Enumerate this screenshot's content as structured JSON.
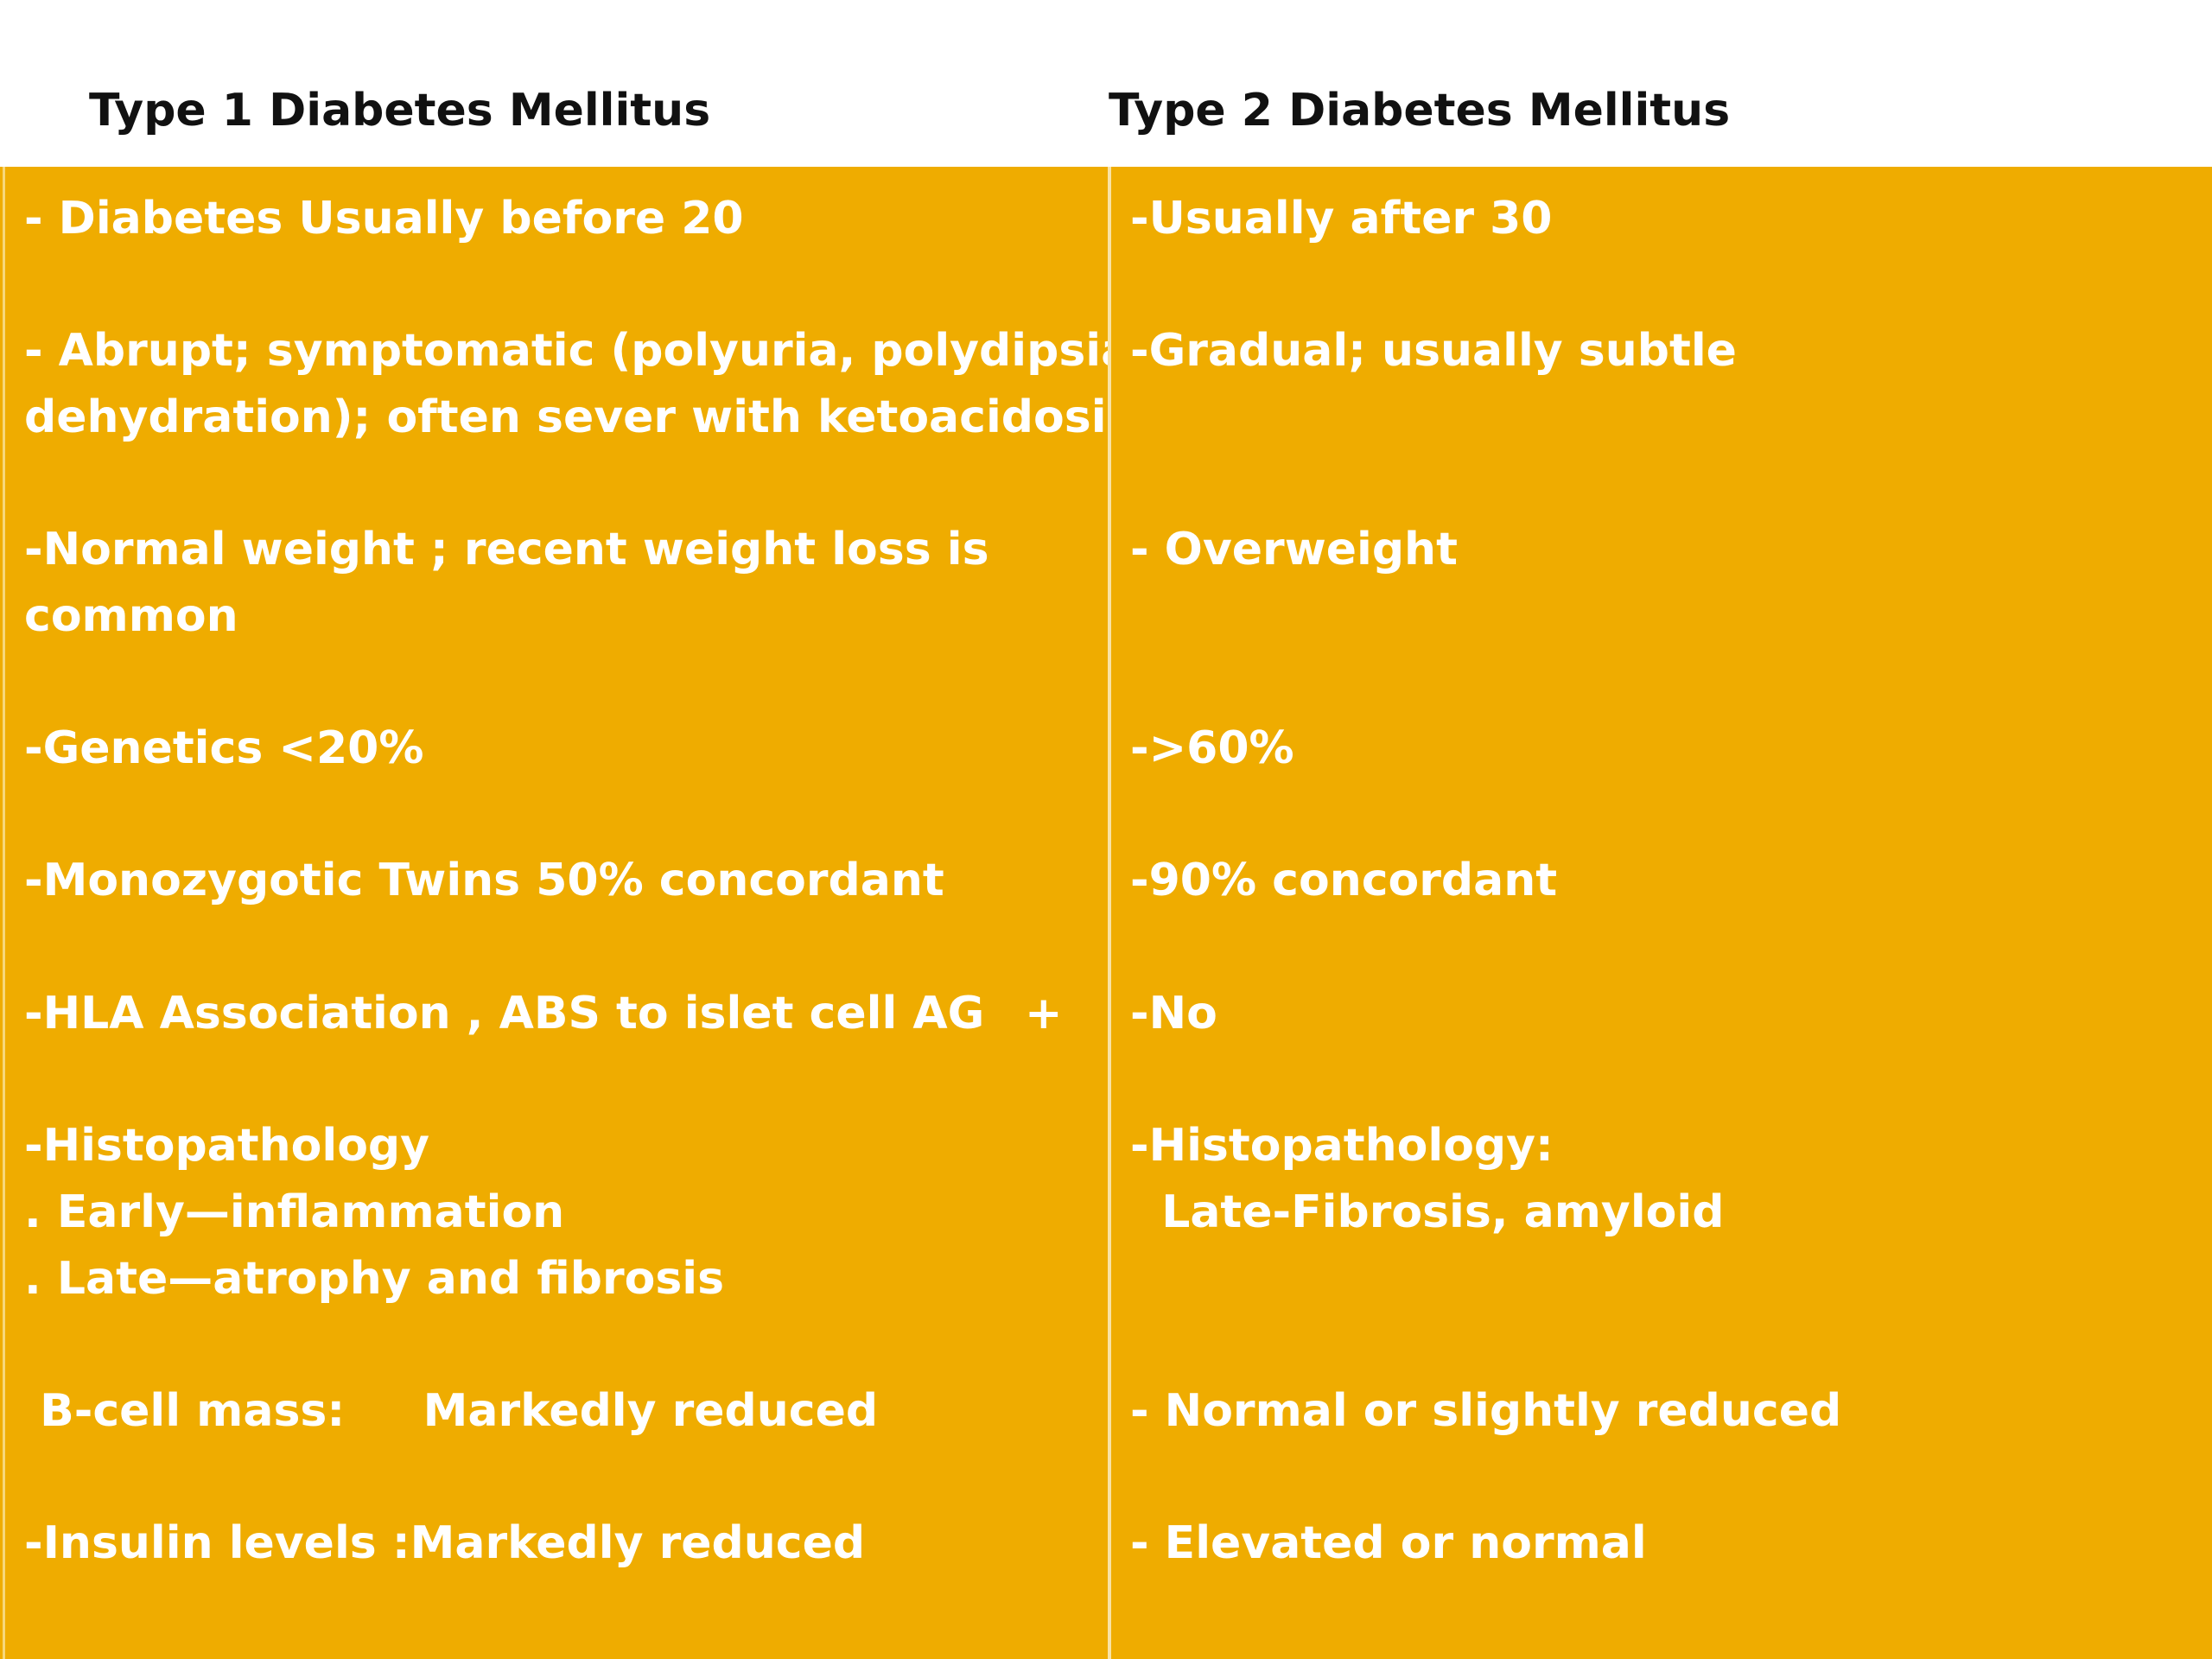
{
  "headings": {
    "type1": "Type 1 Diabetes Mellitus",
    "type2": "Type 2 Diabetes Mellitus"
  },
  "rows": [
    {
      "type1": "- Diabetes Usually before 20",
      "type2": "-Usually after 30"
    },
    {
      "type1": "- Abrupt; symptomatic (polyuria, polydipsia,\ndehydration); often sever with ketoacidosis",
      "type2": "-Gradual; usually subtle"
    },
    {
      "type1": "-Normal weight ; recent weight loss is\ncommon",
      "type2": "- Overweight"
    },
    {
      "type1": "-Genetics <20%",
      "type2": "->60%"
    },
    {
      "type1": "-Monozygotic Twins 50% concordant",
      "type2": "-90% concordant"
    },
    {
      "type1": "-HLA Association , ABS to islet cell AG",
      "type1_extra": "+",
      "type2": "-No"
    },
    {
      "type1": "-Histopathology\n. Early—inflammation\n. Late—atrophy and fibrosis",
      "type2": "-Histopathology:\n  Late-Fibrosis, amyloid"
    },
    {
      "type1": " B-cell mass:     Markedly reduced",
      "type2": "- Normal or slightly reduced"
    },
    {
      "type1": "-Insulin levels :Markedly reduced",
      "type2": "- Elevated or normal"
    }
  ]
}
